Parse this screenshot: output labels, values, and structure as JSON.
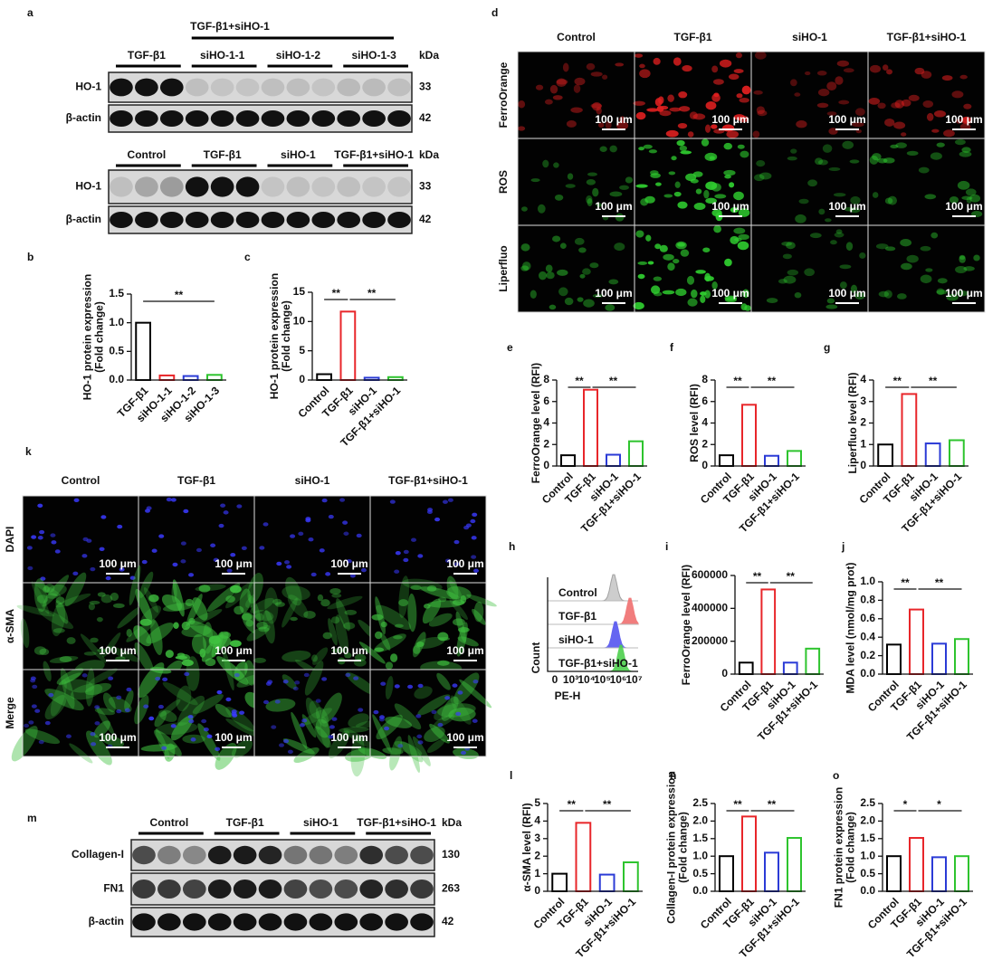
{
  "blots": [
    {
      "panel": "a",
      "group": "TGF-β1+siHO-1",
      "lanes": [
        "TGF-β1",
        "siHO-1-1",
        "siHO-1-2",
        "siHO-1-3"
      ],
      "unit": "kDa",
      "rows": [
        {
          "name": "HO-1",
          "kda": 33
        },
        {
          "name": "β-actin",
          "kda": 42
        }
      ]
    },
    {
      "lanes": [
        "Control",
        "TGF-β1",
        "siHO-1",
        "TGF-β1+siHO-1"
      ],
      "unit": "kDa",
      "rows": [
        {
          "name": "HO-1",
          "kda": 33
        },
        {
          "name": "β-actin",
          "kda": 42
        }
      ]
    },
    {
      "panel": "m",
      "lanes": [
        "Control",
        "TGF-β1",
        "siHO-1",
        "TGF-β1+siHO-1"
      ],
      "unit": "kDa",
      "rows": [
        {
          "name": "Collagen-I",
          "kda": 130
        },
        {
          "name": "FN1",
          "kda": 263
        },
        {
          "name": "β-actin",
          "kda": 42
        }
      ]
    }
  ],
  "images": [
    {
      "panel": "d",
      "columns": [
        "Control",
        "TGF-β1",
        "siHO-1",
        "TGF-β1+siHO-1"
      ],
      "rows": [
        "FerroOrange",
        "ROS",
        "Liperfluo"
      ],
      "scale_bar": "100 μm"
    },
    {
      "panel": "k",
      "columns": [
        "Control",
        "TGF-β1",
        "siHO-1",
        "TGF-β1+siHO-1"
      ],
      "rows": [
        "DAPI",
        "α-SMA",
        "Merge"
      ],
      "scale_bar": "100 μm"
    }
  ],
  "flow": {
    "panel": "h",
    "samples": [
      "Control",
      "TGF-β1",
      "siHO-1",
      "TGF-β1+siHO-1"
    ],
    "xlabel": "PE-H",
    "ylabel": "Count",
    "xtick_labels": [
      "0",
      "10³",
      "10⁴",
      "10⁵",
      "10⁶",
      "10⁷"
    ]
  },
  "chart_data": [
    {
      "type": "bar",
      "panel": "b",
      "ylabel": [
        "HO-1 protein expression",
        "(Fold change)"
      ],
      "categories": [
        "TGF-β1",
        "siHO-1-1",
        "siHO-1-2",
        "siHO-1-3"
      ],
      "values": [
        1.0,
        0.08,
        0.07,
        0.09
      ],
      "colors": [
        "#000000",
        "#e8262a",
        "#2b3bd6",
        "#2ec42e"
      ],
      "ylim": [
        0,
        1.5
      ],
      "yticks": [
        {
          "value": 0,
          "label": "0.0"
        },
        {
          "value": 0.5,
          "label": "0.5"
        },
        {
          "value": 1,
          "label": "1.0"
        },
        {
          "value": 1.5,
          "label": "1.5"
        }
      ],
      "annotations": [
        {
          "label": "**",
          "span": [
            0,
            3
          ]
        }
      ]
    },
    {
      "type": "bar",
      "panel": "c",
      "ylabel": [
        "HO-1 protein expression",
        "(Fold change)"
      ],
      "categories": [
        "Control",
        "TGF-β1",
        "siHO-1",
        "TGF-β1+siHO-1"
      ],
      "values": [
        1.0,
        11.7,
        0.4,
        0.5
      ],
      "colors": [
        "#000000",
        "#e8262a",
        "#2b3bd6",
        "#2ec42e"
      ],
      "ylim": [
        0,
        15
      ],
      "yticks": [
        0,
        5,
        10,
        15
      ],
      "annotations": [
        {
          "label": "**",
          "span": [
            0,
            1
          ]
        },
        {
          "label": "**",
          "span": [
            1,
            3
          ]
        }
      ]
    },
    {
      "type": "bar",
      "panel": "e",
      "ylabel": [
        "FerroOrange level (RFI)"
      ],
      "categories": [
        "Control",
        "TGF-β1",
        "siHO-1",
        "TGF-β1+siHO-1"
      ],
      "values": [
        1.0,
        7.1,
        1.05,
        2.3
      ],
      "colors": [
        "#000000",
        "#e8262a",
        "#2b3bd6",
        "#2ec42e"
      ],
      "ylim": [
        0,
        8
      ],
      "yticks": [
        0,
        2,
        4,
        6,
        8
      ],
      "annotations": [
        {
          "label": "**",
          "span": [
            0,
            1
          ]
        },
        {
          "label": "**",
          "span": [
            1,
            3
          ]
        }
      ]
    },
    {
      "type": "bar",
      "panel": "f",
      "ylabel": [
        "ROS level (RFI)"
      ],
      "categories": [
        "Control",
        "TGF-β1",
        "siHO-1",
        "TGF-β1+siHO-1"
      ],
      "values": [
        1.0,
        5.7,
        0.95,
        1.4
      ],
      "colors": [
        "#000000",
        "#e8262a",
        "#2b3bd6",
        "#2ec42e"
      ],
      "ylim": [
        0,
        8
      ],
      "yticks": [
        0,
        2,
        4,
        6,
        8
      ],
      "annotations": [
        {
          "label": "**",
          "span": [
            0,
            1
          ]
        },
        {
          "label": "**",
          "span": [
            1,
            3
          ]
        }
      ]
    },
    {
      "type": "bar",
      "panel": "g",
      "ylabel": [
        "Liperfluo level (RFI)"
      ],
      "categories": [
        "Control",
        "TGF-β1",
        "siHO-1",
        "TGF-β1+siHO-1"
      ],
      "values": [
        1.0,
        3.35,
        1.05,
        1.2
      ],
      "colors": [
        "#000000",
        "#e8262a",
        "#2b3bd6",
        "#2ec42e"
      ],
      "ylim": [
        0,
        4
      ],
      "yticks": [
        0,
        1,
        2,
        3,
        4
      ],
      "annotations": [
        {
          "label": "**",
          "span": [
            0,
            1
          ]
        },
        {
          "label": "**",
          "span": [
            1,
            3
          ]
        }
      ]
    },
    {
      "type": "bar",
      "panel": "i",
      "ylabel": [
        "FerroOrange level (RFI)"
      ],
      "categories": [
        "Control",
        "TGF-β1",
        "siHO-1",
        "TGF-β1+siHO-1"
      ],
      "values": [
        70000,
        515000,
        70000,
        155000
      ],
      "colors": [
        "#000000",
        "#e8262a",
        "#2b3bd6",
        "#2ec42e"
      ],
      "ylim": [
        0,
        600000
      ],
      "yticks": [
        0,
        200000,
        400000,
        600000
      ],
      "annotations": [
        {
          "label": "**",
          "span": [
            0,
            1
          ]
        },
        {
          "label": "**",
          "span": [
            1,
            3
          ]
        }
      ]
    },
    {
      "type": "bar",
      "panel": "j",
      "ylabel": [
        "MDA level (nmol/mg prot)"
      ],
      "categories": [
        "Control",
        "TGF-β1",
        "siHO-1",
        "TGF-β1+siHO-1"
      ],
      "values": [
        0.32,
        0.7,
        0.33,
        0.38
      ],
      "colors": [
        "#000000",
        "#e8262a",
        "#2b3bd6",
        "#2ec42e"
      ],
      "ylim": [
        0,
        1
      ],
      "yticks": [
        {
          "value": 0,
          "label": "0.0"
        },
        {
          "value": 0.2,
          "label": "0.2"
        },
        {
          "value": 0.4,
          "label": "0.4"
        },
        {
          "value": 0.6,
          "label": "0.6"
        },
        {
          "value": 0.8,
          "label": "0.8"
        },
        {
          "value": 1,
          "label": "1.0"
        }
      ],
      "annotations": [
        {
          "label": "**",
          "span": [
            0,
            1
          ]
        },
        {
          "label": "**",
          "span": [
            1,
            3
          ]
        }
      ]
    },
    {
      "type": "bar",
      "panel": "l",
      "ylabel": [
        "α-SMA level (RFI)"
      ],
      "categories": [
        "Control",
        "TGF-β1",
        "siHO-1",
        "TGF-β1+siHO-1"
      ],
      "values": [
        1.0,
        3.9,
        0.95,
        1.65
      ],
      "colors": [
        "#000000",
        "#e8262a",
        "#2b3bd6",
        "#2ec42e"
      ],
      "ylim": [
        0,
        5
      ],
      "yticks": [
        0,
        1,
        2,
        3,
        4,
        5
      ],
      "annotations": [
        {
          "label": "**",
          "span": [
            0,
            1
          ]
        },
        {
          "label": "**",
          "span": [
            1,
            3
          ]
        }
      ]
    },
    {
      "type": "bar",
      "panel": "n",
      "ylabel": [
        "Collagen-I protein expression",
        "(Fold change)"
      ],
      "categories": [
        "Control",
        "TGF-β1",
        "siHO-1",
        "TGF-β1+siHO-1"
      ],
      "values": [
        1.0,
        2.13,
        1.1,
        1.52
      ],
      "colors": [
        "#000000",
        "#e8262a",
        "#2b3bd6",
        "#2ec42e"
      ],
      "ylim": [
        0,
        2.5
      ],
      "yticks": [
        {
          "value": 0,
          "label": "0.0"
        },
        {
          "value": 0.5,
          "label": "0.5"
        },
        {
          "value": 1,
          "label": "1.0"
        },
        {
          "value": 1.5,
          "label": "1.5"
        },
        {
          "value": 2,
          "label": "2.0"
        },
        {
          "value": 2.5,
          "label": "2.5"
        }
      ],
      "annotations": [
        {
          "label": "**",
          "span": [
            0,
            1
          ]
        },
        {
          "label": "**",
          "span": [
            1,
            3
          ]
        }
      ]
    },
    {
      "type": "bar",
      "panel": "o",
      "ylabel": [
        "FN1 protein expression",
        "(Fold change)"
      ],
      "categories": [
        "Control",
        "TGF-β1",
        "siHO-1",
        "TGF-β1+siHO-1"
      ],
      "values": [
        1.0,
        1.52,
        0.97,
        1.0
      ],
      "colors": [
        "#000000",
        "#e8262a",
        "#2b3bd6",
        "#2ec42e"
      ],
      "ylim": [
        0,
        2.5
      ],
      "yticks": [
        {
          "value": 0,
          "label": "0.0"
        },
        {
          "value": 0.5,
          "label": "0.5"
        },
        {
          "value": 1,
          "label": "1.0"
        },
        {
          "value": 1.5,
          "label": "1.5"
        },
        {
          "value": 2,
          "label": "2.0"
        },
        {
          "value": 2.5,
          "label": "2.5"
        }
      ],
      "annotations": [
        {
          "label": "*",
          "span": [
            0,
            1
          ]
        },
        {
          "label": "*",
          "span": [
            1,
            3
          ]
        }
      ]
    }
  ]
}
